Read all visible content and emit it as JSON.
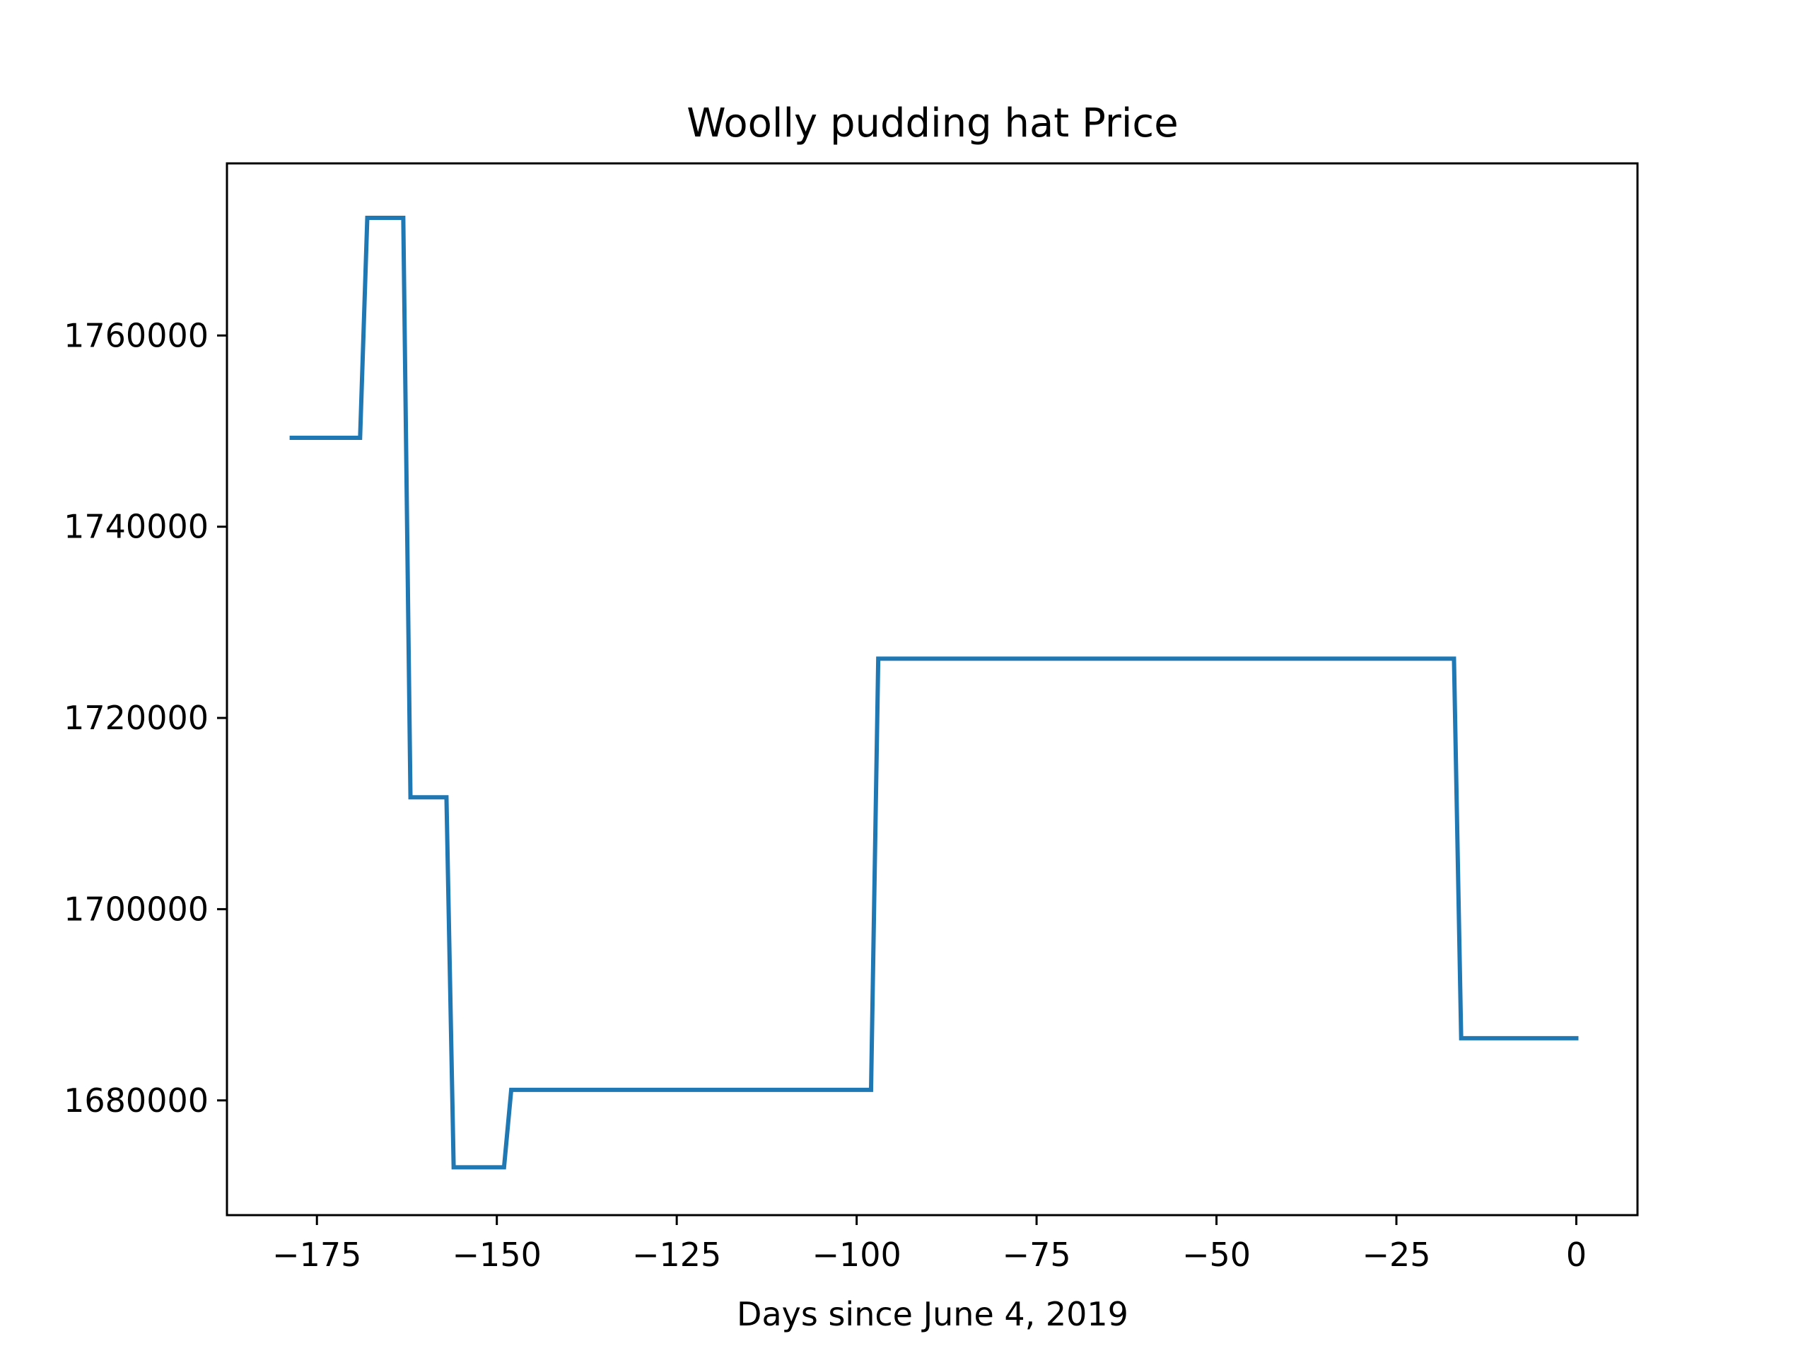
{
  "chart_data": {
    "type": "line",
    "title": "Woolly pudding hat Price",
    "xlabel": "Days since June 4, 2019",
    "ylabel": "",
    "xlim": [
      -187.5,
      8.5
    ],
    "ylim": [
      1668000,
      1778000
    ],
    "x_ticks": [
      -175,
      -150,
      -125,
      -100,
      -75,
      -50,
      -25,
      0
    ],
    "x_tick_labels": [
      "−175",
      "−150",
      "−125",
      "−100",
      "−75",
      "−50",
      "−25",
      "0"
    ],
    "y_ticks": [
      1680000,
      1700000,
      1720000,
      1740000,
      1760000
    ],
    "y_tick_labels": [
      "1680000",
      "1700000",
      "1720000",
      "1740000",
      "1760000"
    ],
    "grid": false,
    "series": [
      {
        "color": "#1f77b4",
        "x": [
          -178.5,
          -169,
          -168,
          -163,
          -162,
          -157,
          -156,
          -149,
          -148,
          -98,
          -97,
          -17,
          -16,
          0
        ],
        "y": [
          1749300,
          1749300,
          1772300,
          1772300,
          1711700,
          1711700,
          1673000,
          1673000,
          1681100,
          1681100,
          1726200,
          1726200,
          1686500,
          1686500
        ]
      }
    ]
  }
}
